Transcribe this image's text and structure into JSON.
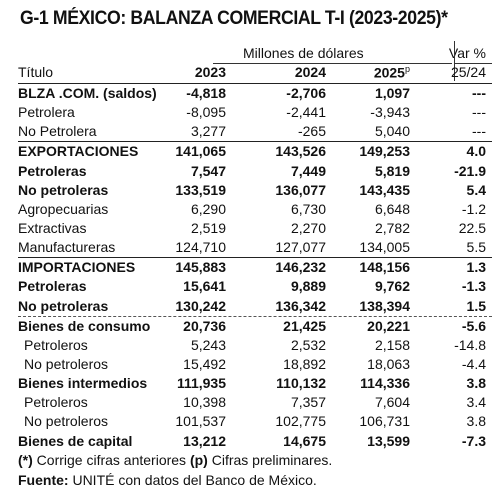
{
  "title": "G-1  MÉXICO: BALANZA COMERCIAL T-I (2023-2025)*",
  "units": "Millones de dólares",
  "var_header": "Var %",
  "header": {
    "label": "Título",
    "y1": "2023",
    "y2": "2024",
    "y3": "2025",
    "y3_sup": "p",
    "var": "25/24"
  },
  "rows": [
    {
      "label": "BLZA .COM. (saldos)",
      "v": [
        "-4,818",
        "-2,706",
        "1,097",
        "---"
      ]
    },
    {
      "label": "Petrolera",
      "v": [
        "-8,095",
        "-2,441",
        "-3,943",
        "---"
      ]
    },
    {
      "label": "No Petrolera",
      "v": [
        "3,277",
        "-265",
        "5,040",
        "---"
      ]
    },
    {
      "label": "EXPORTACIONES",
      "v": [
        "141,065",
        "143,526",
        "149,253",
        "4.0"
      ]
    },
    {
      "label": "Petroleras",
      "v": [
        "7,547",
        "7,449",
        "5,819",
        "-21.9"
      ]
    },
    {
      "label": "No petroleras",
      "v": [
        "133,519",
        "136,077",
        "143,435",
        "5.4"
      ]
    },
    {
      "label": "Agropecuarias",
      "v": [
        "6,290",
        "6,730",
        "6,648",
        "-1.2"
      ]
    },
    {
      "label": "Extractivas",
      "v": [
        "2,519",
        "2,270",
        "2,782",
        "22.5"
      ]
    },
    {
      "label": "Manufactureras",
      "v": [
        "124,710",
        "127,077",
        "134,005",
        "5.5"
      ]
    },
    {
      "label": "IMPORTACIONES",
      "v": [
        "145,883",
        "146,232",
        "148,156",
        "1.3"
      ]
    },
    {
      "label": "Petroleras",
      "v": [
        "15,641",
        "9,889",
        "9,762",
        "-1.3"
      ]
    },
    {
      "label": "No petroleras",
      "v": [
        "130,242",
        "136,342",
        "138,394",
        "1.5"
      ]
    },
    {
      "label": "Bienes de consumo",
      "v": [
        "20,736",
        "21,425",
        "20,221",
        "-5.6"
      ]
    },
    {
      "label": "Petroleros",
      "v": [
        "5,243",
        "2,532",
        "2,158",
        "-14.8"
      ]
    },
    {
      "label": "No petroleros",
      "v": [
        "15,492",
        "18,892",
        "18,063",
        "-4.4"
      ]
    },
    {
      "label": "Bienes intermedios",
      "v": [
        "111,935",
        "110,132",
        "114,336",
        "3.8"
      ]
    },
    {
      "label": "Petroleros",
      "v": [
        "10,398",
        "7,357",
        "7,604",
        "3.4"
      ]
    },
    {
      "label": "No petroleros",
      "v": [
        "101,537",
        "102,775",
        "106,731",
        "3.8"
      ]
    },
    {
      "label": "Bienes de capital",
      "v": [
        "13,212",
        "14,675",
        "13,599",
        "-7.3"
      ]
    }
  ],
  "footnote1": {
    "a": "(*)",
    "b": " Corrige cifras anteriores ",
    "c": "(p)",
    "d": " Cifras preliminares."
  },
  "footnote2": {
    "a": "Fuente:",
    "b": " UNITÉ con datos del Banco de México."
  }
}
